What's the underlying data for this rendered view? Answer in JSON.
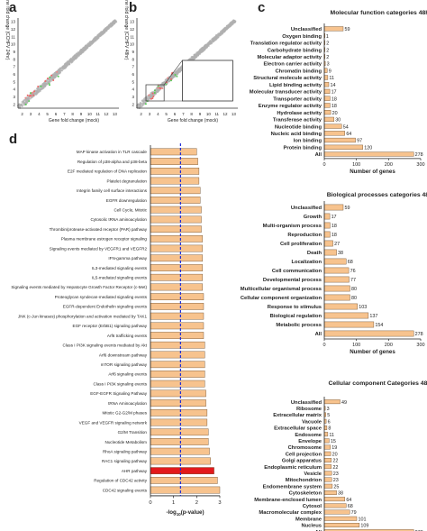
{
  "panels": {
    "a": "a",
    "b": "b",
    "c": "c",
    "d": "d"
  },
  "colors": {
    "bar": "#f7c38e",
    "bar_stroke": "#6a4a2a",
    "highlight": "#e3191c",
    "dash": "#1c2bd6",
    "scatter": "#b0b0b0"
  },
  "chart_data": [
    {
      "panel": "a",
      "type": "scatter",
      "xlabel": "Gene fold change (mock)",
      "ylabel": "Gene fold change (CCHFV 24hr)",
      "x_ticks": [
        "2",
        "3",
        "4",
        "5",
        "6",
        "7",
        "8",
        "9",
        "10",
        "11",
        "12",
        "13"
      ],
      "y_ticks": [
        "2",
        "3",
        "4",
        "5",
        "6",
        "7",
        "8",
        "9",
        "10",
        "11",
        "12",
        "13"
      ],
      "xlim": [
        2,
        14
      ],
      "ylim": [
        2,
        14
      ]
    },
    {
      "panel": "b",
      "type": "scatter",
      "xlabel": "Gene fold change (mock)",
      "ylabel": "Gene fold change (CCHFV 48hr)",
      "x_ticks": [
        "2",
        "3",
        "4",
        "5",
        "6",
        "7",
        "8",
        "9",
        "10",
        "11",
        "12",
        "13"
      ],
      "y_ticks": [
        "2",
        "3",
        "4",
        "5",
        "6",
        "7",
        "8",
        "9",
        "10",
        "11",
        "12",
        "13"
      ],
      "xlim": [
        2,
        14
      ],
      "ylim": [
        2,
        14
      ]
    },
    {
      "panel": "c1",
      "type": "bar",
      "title": "Molecular function categories 48h",
      "xlabel": "Number of genes",
      "x_ticks": [
        "0",
        "100",
        "200",
        "300"
      ],
      "xlim": [
        0,
        300
      ],
      "categories": [
        "Unclassified",
        "Oxygen binding",
        "Translation regulator activity",
        "Carbohydrate binding",
        "Molecular adaptor activity",
        "Electron carrier activity",
        "Chromatin binding",
        "Structural molecule activity",
        "Lipid binding activity",
        "Molecular transducer activity",
        "Transporter activity",
        "Enzyme regulator activity",
        "Hydrolase activity",
        "Transferase activity",
        "Nucleotide binding",
        "Nucleic acid binding",
        "Ion binding",
        "Protein binding",
        "All"
      ],
      "values": [
        59,
        1,
        2,
        2,
        2,
        3,
        9,
        11,
        14,
        17,
        18,
        18,
        20,
        30,
        54,
        64,
        97,
        120,
        278
      ]
    },
    {
      "panel": "c2",
      "type": "bar",
      "title": "Biological processes categories 48h",
      "xlabel": "Number of genes",
      "x_ticks": [
        "0",
        "100",
        "200",
        "300"
      ],
      "xlim": [
        0,
        300
      ],
      "categories": [
        "Unclassified",
        "Growth",
        "Multi-organism process",
        "Reproduction",
        "Cell proliferation",
        "Death",
        "Localization",
        "Cell communication",
        "Developmental process",
        "Multicellular organismal process",
        "Cellular component organization",
        "Response to stimulus",
        "Biological regulation",
        "Metabolic process",
        "All"
      ],
      "values": [
        59,
        17,
        18,
        18,
        27,
        38,
        68,
        76,
        77,
        80,
        80,
        103,
        137,
        154,
        278
      ]
    },
    {
      "panel": "c3",
      "type": "bar",
      "title": "Cellular component Categories 48h",
      "xlabel": "Number of genes",
      "x_ticks": [
        "0",
        "100",
        "200",
        "300"
      ],
      "xlim": [
        0,
        300
      ],
      "categories": [
        "Unclassified",
        "Ribosome",
        "Extracellular matrix",
        "Vacuole",
        "Extracellular space",
        "Endosome",
        "Envelope",
        "Chromosome",
        "Cell projection",
        "Golgi apparatus",
        "Endoplasmic reticulum",
        "Vesicle",
        "Mitochondrion",
        "Endomembrane system",
        "Cytoskeleton",
        "Membrane-enclosed lumen",
        "Cytosol",
        "Macromolecular complex",
        "Membrane",
        "Nucleus",
        "All"
      ],
      "values": [
        49,
        3,
        5,
        6,
        8,
        11,
        15,
        19,
        20,
        22,
        22,
        23,
        23,
        25,
        38,
        64,
        68,
        79,
        101,
        109,
        278
      ]
    },
    {
      "panel": "d",
      "type": "bar",
      "xlabel": "-log10(p-value)",
      "xlabel_main": "-log",
      "xlabel_sub": "10",
      "xlabel_rest": "(p-value)",
      "x_ticks": [
        "0",
        "1",
        "2",
        "3"
      ],
      "xlim": [
        0,
        3
      ],
      "threshold": 1.3,
      "highlight_category": "AHR pathway",
      "categories": [
        "MAP kinase activation in TLR cascade",
        "Regulation of p38-alpha and p38-beta",
        "E2F mediated regulation of DNA replication",
        "Platelet degranulation",
        "Integrin family cell surface interactions",
        "EGFR downregulation",
        "Cell Cycle, Mitotic",
        "Cytosolic tRNA aminoacylation",
        "Thrombin/protease-activated receptor (PAR) pathway",
        "Plasma membrane estrogen receptor signaling",
        "Signaling events mediated by VEGFR1 and VEGFR2",
        "IFN-gamma pathway",
        "IL3-mediated signaling events",
        "IL5-mediated signaling events",
        "Signaling events mediated by Hepatocyte Growth Factor Receptor (c-Met)",
        "Proteoglycan syndecan-mediated signaling events",
        "EGFR-dependent Endothelin signaling events",
        "JNK (c-Jun kinases) phosphorylation and activation mediated by TAK1",
        "EGF receptor (ErbB1) signaling pathway",
        "Arf6 trafficking events",
        "Class I PI3K signaling events mediated by Akt",
        "Arf6 downstream pathway",
        "mTOR signaling pathway",
        "Arf6 signaling events",
        "Class I PI3K signaling events",
        "EGF-EGFR Signaling Pathway",
        "tRNA Aminoacylation",
        "Mitotic G2-G2/M phases",
        "VEGF and VEGFR signaling network",
        "G2/M Transition",
        "Nucleotide Metabolism",
        "RhoA signaling pathway",
        "RAC1 signaling pathway",
        "AHR pathway",
        "Regulation of CDC42 activity",
        "CDC42 signaling events"
      ],
      "values": [
        2.0,
        2.05,
        2.1,
        2.1,
        2.15,
        2.15,
        2.2,
        2.2,
        2.2,
        2.25,
        2.25,
        2.25,
        2.25,
        2.25,
        2.25,
        2.3,
        2.3,
        2.3,
        2.3,
        2.3,
        2.35,
        2.35,
        2.35,
        2.35,
        2.35,
        2.4,
        2.4,
        2.45,
        2.45,
        2.5,
        2.5,
        2.55,
        2.6,
        2.75,
        2.9,
        3.0
      ]
    }
  ]
}
